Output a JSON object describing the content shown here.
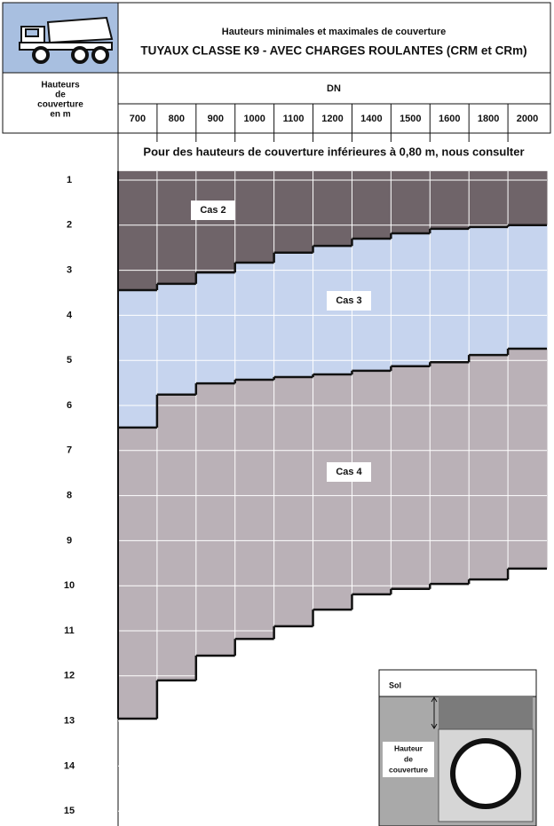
{
  "chart_data": {
    "type": "step-band",
    "title": "Hauteurs minimales et maximales de couverture",
    "subtitle": "TUYAUX CLASSE K9 - AVEC CHARGES ROULANTES (CRM et CRm)",
    "y_label": [
      "Hauteurs",
      "de",
      "couverture",
      "en m"
    ],
    "x_label": "DN",
    "note": "Pour des hauteurs de couverture inférieures à 0,80 m, nous consulter",
    "categories": [
      "700",
      "800",
      "900",
      "1000",
      "1100",
      "1200",
      "1400",
      "1500",
      "1600",
      "1800",
      "2000"
    ],
    "series": [
      {
        "name": "Cas 2",
        "color": "#6f6469",
        "values": [
          3.44,
          3.3,
          3.05,
          2.83,
          2.61,
          2.46,
          2.3,
          2.18,
          2.08,
          2.04,
          2.0
        ]
      },
      {
        "name": "Cas 3",
        "color": "#c6d4ee",
        "values": [
          6.49,
          5.76,
          5.51,
          5.43,
          5.37,
          5.31,
          5.23,
          5.13,
          5.04,
          4.88,
          4.74
        ]
      },
      {
        "name": "Cas 4",
        "color": "#bab1b7",
        "values": [
          12.95,
          12.1,
          11.55,
          11.18,
          10.9,
          10.53,
          10.19,
          10.07,
          9.96,
          9.86,
          9.62
        ]
      }
    ],
    "ylim": [
      0.8,
      15.33
    ],
    "yticks": [
      1,
      2,
      3,
      4,
      5,
      6,
      7,
      8,
      9,
      10,
      11,
      12,
      13,
      14,
      15
    ],
    "grid": true,
    "inset": {
      "ground": "Sol",
      "depth_label": [
        "Hauteur",
        "de",
        "couverture"
      ]
    }
  }
}
